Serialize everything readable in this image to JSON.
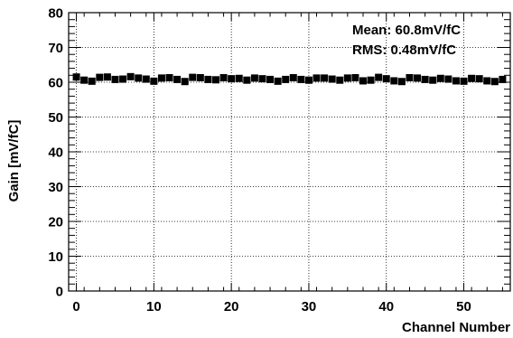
{
  "chart_data": {
    "type": "scatter",
    "xlabel": "Channel Number",
    "ylabel": "Gain [mV/fC]",
    "xlim": [
      -1,
      56
    ],
    "ylim": [
      0,
      80
    ],
    "x_ticks": [
      "0",
      "10",
      "20",
      "30",
      "40",
      "50"
    ],
    "y_ticks": [
      "0",
      "10",
      "20",
      "30",
      "40",
      "50",
      "60",
      "70",
      "80"
    ],
    "grid": true,
    "annotations": {
      "mean": "Mean: 60.8mV/fC",
      "rms": "RMS: 0.48mV/fC"
    },
    "series": [
      {
        "x": [
          0,
          1,
          2,
          3,
          4,
          5,
          6,
          7,
          8,
          9,
          10,
          11,
          12,
          13,
          14,
          15,
          16,
          17,
          18,
          19,
          20,
          21,
          22,
          23,
          24,
          25,
          26,
          27,
          28,
          29,
          30,
          31,
          32,
          33,
          34,
          35,
          36,
          37,
          38,
          39,
          40,
          41,
          42,
          43,
          44,
          45,
          46,
          47,
          48,
          49,
          50,
          51,
          52,
          53,
          54,
          55
        ],
        "y": [
          61.5,
          60.6,
          60.3,
          61.4,
          61.5,
          60.8,
          60.9,
          61.6,
          61.2,
          60.9,
          60.3,
          61.2,
          61.3,
          60.8,
          60.2,
          61.4,
          61.3,
          60.8,
          60.7,
          61.3,
          61.0,
          61.1,
          60.6,
          61.2,
          61.0,
          60.8,
          60.3,
          60.8,
          61.3,
          60.8,
          60.6,
          61.2,
          61.2,
          60.9,
          60.6,
          61.2,
          61.3,
          60.4,
          60.6,
          61.4,
          61.0,
          60.4,
          60.2,
          61.3,
          61.2,
          60.8,
          60.6,
          61.1,
          60.9,
          60.4,
          60.3,
          61.1,
          61.0,
          60.4,
          60.2,
          60.8
        ],
        "marker": "square",
        "color": "#000000"
      }
    ]
  }
}
